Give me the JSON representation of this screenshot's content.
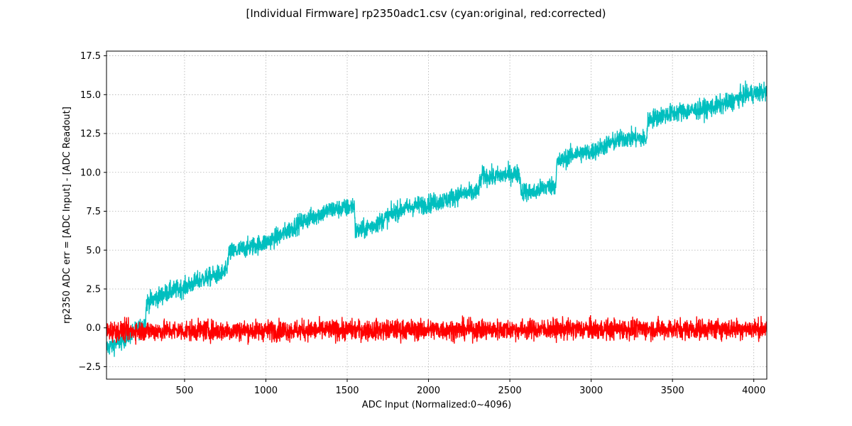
{
  "chart_data": {
    "type": "line",
    "title": "[Individual Firmware] rp2350adc1.csv (cyan:original, red:corrected)",
    "xlabel": "ADC Input (Normalized:0~4096)",
    "ylabel": "rp2350 ADC err = [ADC Input] - [ADC Readout]",
    "xlim": [
      20,
      4080
    ],
    "ylim": [
      -3.3,
      17.8
    ],
    "grid": true,
    "x_ticks": [
      500,
      1000,
      1500,
      2000,
      2500,
      3000,
      3500,
      4000
    ],
    "y_ticks": [
      -2.5,
      0.0,
      2.5,
      5.0,
      7.5,
      10.0,
      12.5,
      15.0,
      17.5
    ],
    "x_tick_labels": [
      "500",
      "1000",
      "1500",
      "2000",
      "2500",
      "3000",
      "3500",
      "4000"
    ],
    "y_tick_labels": [
      "−2.5",
      "0.0",
      "2.5",
      "5.0",
      "7.5",
      "10.0",
      "12.5",
      "15.0",
      "17.5"
    ],
    "series": [
      {
        "color": "#00bfbf",
        "x": [
          20,
          100,
          200,
          260,
          265,
          400,
          500,
          600,
          700,
          760,
          770,
          900,
          1000,
          1100,
          1200,
          1300,
          1400,
          1500,
          1545,
          1550,
          1600,
          1700,
          1800,
          1900,
          2000,
          2100,
          2200,
          2300,
          2330,
          2400,
          2500,
          2560,
          2570,
          2650,
          2700,
          2780,
          2790,
          2900,
          3000,
          3100,
          3200,
          3300,
          3340,
          3350,
          3450,
          3550,
          3650,
          3750,
          3850,
          3950,
          4080
        ],
        "values": [
          -1.3,
          -0.9,
          -0.2,
          0.3,
          1.6,
          2.3,
          2.6,
          3.1,
          3.4,
          3.6,
          4.8,
          5.2,
          5.5,
          6.0,
          6.7,
          7.2,
          7.6,
          7.7,
          7.9,
          6.2,
          6.3,
          6.8,
          7.5,
          7.8,
          8.0,
          8.2,
          8.6,
          8.7,
          9.8,
          9.7,
          9.9,
          9.9,
          8.8,
          8.7,
          9.0,
          9.2,
          10.6,
          11.2,
          11.3,
          11.8,
          12.2,
          12.2,
          12.1,
          13.4,
          13.7,
          13.9,
          14.0,
          14.2,
          14.5,
          15.0,
          15.2
        ],
        "noise": 0.55
      },
      {
        "color": "#ff0000",
        "x": [
          20,
          4080
        ],
        "values": [
          -0.2,
          -0.05
        ],
        "noise": 0.6
      }
    ]
  }
}
